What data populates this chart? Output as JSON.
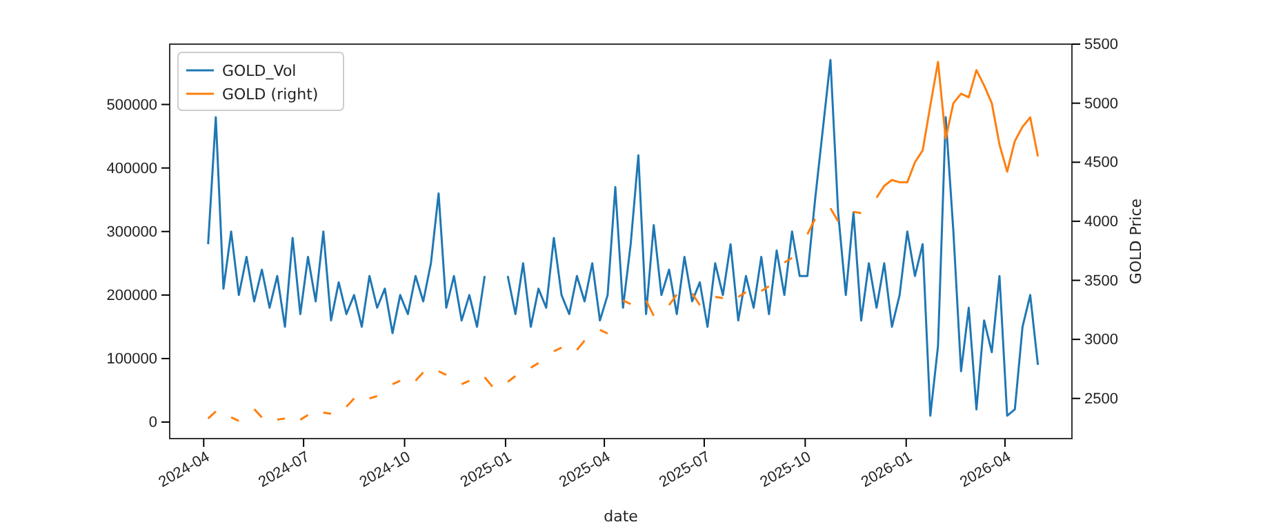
{
  "chart_data": {
    "type": "line",
    "xlabel": "date",
    "y2label": "GOLD Price",
    "x": [
      "2024-04-05",
      "2024-04-12",
      "2024-04-19",
      "2024-04-26",
      "2024-05-03",
      "2024-05-10",
      "2024-05-17",
      "2024-05-24",
      "2024-05-31",
      "2024-06-07",
      "2024-06-14",
      "2024-06-21",
      "2024-06-28",
      "2024-07-05",
      "2024-07-12",
      "2024-07-19",
      "2024-07-26",
      "2024-08-02",
      "2024-08-09",
      "2024-08-16",
      "2024-08-23",
      "2024-08-30",
      "2024-09-06",
      "2024-09-13",
      "2024-09-20",
      "2024-09-27",
      "2024-10-04",
      "2024-10-11",
      "2024-10-18",
      "2024-10-25",
      "2024-11-01",
      "2024-11-08",
      "2024-11-15",
      "2024-11-22",
      "2024-11-29",
      "2024-12-06",
      "2024-12-13",
      "2024-12-20",
      "2024-12-27",
      "2025-01-03",
      "2025-01-10",
      "2025-01-17",
      "2025-01-24",
      "2025-01-31",
      "2025-02-07",
      "2025-02-14",
      "2025-02-21",
      "2025-02-28",
      "2025-03-07",
      "2025-03-14",
      "2025-03-21",
      "2025-03-28",
      "2025-04-04",
      "2025-04-11",
      "2025-04-18",
      "2025-04-25",
      "2025-05-02",
      "2025-05-09",
      "2025-05-16",
      "2025-05-23",
      "2025-05-30",
      "2025-06-06",
      "2025-06-13",
      "2025-06-20",
      "2025-06-27",
      "2025-07-04",
      "2025-07-11",
      "2025-07-18",
      "2025-07-25",
      "2025-08-01",
      "2025-08-08",
      "2025-08-15",
      "2025-08-22",
      "2025-08-29",
      "2025-09-05",
      "2025-09-12",
      "2025-09-19",
      "2025-09-26",
      "2025-10-03",
      "2025-10-10",
      "2025-10-17",
      "2025-10-24",
      "2025-10-31",
      "2025-11-07",
      "2025-11-14",
      "2025-11-21",
      "2025-11-28",
      "2025-12-05",
      "2025-12-12",
      "2025-12-19",
      "2025-12-26",
      "2026-01-02",
      "2026-01-09",
      "2026-01-16",
      "2026-01-23",
      "2026-01-30",
      "2026-02-06",
      "2026-02-13",
      "2026-02-20",
      "2026-02-27",
      "2026-03-06",
      "2026-03-13",
      "2026-03-20",
      "2026-03-27",
      "2026-04-03",
      "2026-04-10",
      "2026-04-17",
      "2026-04-24",
      "2026-05-01"
    ],
    "series": [
      {
        "name": "GOLD_Vol",
        "color": "#1f77b4",
        "values": [
          280000,
          480000,
          210000,
          300000,
          200000,
          260000,
          190000,
          240000,
          180000,
          230000,
          150000,
          290000,
          170000,
          260000,
          190000,
          300000,
          160000,
          220000,
          170000,
          200000,
          150000,
          230000,
          180000,
          210000,
          140000,
          200000,
          170000,
          230000,
          190000,
          250000,
          360000,
          180000,
          230000,
          160000,
          200000,
          150000,
          230000,
          null,
          null,
          230000,
          170000,
          250000,
          150000,
          210000,
          180000,
          290000,
          200000,
          170000,
          230000,
          190000,
          250000,
          160000,
          200000,
          370000,
          180000,
          280000,
          420000,
          170000,
          310000,
          200000,
          240000,
          170000,
          260000,
          190000,
          220000,
          150000,
          250000,
          200000,
          280000,
          160000,
          230000,
          180000,
          260000,
          170000,
          270000,
          200000,
          300000,
          230000,
          230000,
          350000,
          460000,
          570000,
          330000,
          200000,
          330000,
          160000,
          250000,
          180000,
          250000,
          150000,
          200000,
          300000,
          230000,
          280000,
          10000,
          120000,
          480000,
          300000,
          80000,
          180000,
          20000,
          160000,
          110000,
          230000,
          10000,
          20000,
          150000,
          200000,
          90000
        ]
      },
      {
        "name": "GOLD (right)",
        "color": "#ff7f0e",
        "axis": "y2",
        "values": [
          2330,
          2390,
          null,
          2340,
          2310,
          null,
          2410,
          2340,
          null,
          2320,
          2330,
          null,
          2320,
          2360,
          null,
          2380,
          2370,
          null,
          2430,
          2500,
          null,
          2500,
          2520,
          null,
          2620,
          2650,
          null,
          2650,
          2720,
          null,
          2730,
          2700,
          null,
          2620,
          2650,
          null,
          2680,
          2600,
          null,
          2640,
          2690,
          null,
          2760,
          2800,
          null,
          2900,
          2930,
          null,
          2910,
          2990,
          null,
          3080,
          3050,
          null,
          3330,
          3300,
          null,
          3330,
          3200,
          null,
          3290,
          3380,
          null,
          3390,
          3290,
          null,
          3360,
          3350,
          null,
          3360,
          3400,
          null,
          3410,
          3450,
          null,
          3650,
          3690,
          null,
          3890,
          4020,
          null,
          4110,
          4000,
          null,
          4080,
          4070,
          null,
          4200,
          4300,
          4350,
          4330,
          4330,
          4500,
          4600,
          4980,
          5350,
          4700,
          5000,
          5080,
          5050,
          5280,
          5150,
          5000,
          4650,
          4420,
          4680,
          4800,
          4880,
          4550
        ]
      }
    ],
    "xlim": [
      "2024-03-01",
      "2026-06-01"
    ],
    "xticks": [
      {
        "value": "2024-04-01",
        "label": "2024-04"
      },
      {
        "value": "2024-07-01",
        "label": "2024-07"
      },
      {
        "value": "2024-10-01",
        "label": "2024-10"
      },
      {
        "value": "2025-01-01",
        "label": "2025-01"
      },
      {
        "value": "2025-04-01",
        "label": "2025-04"
      },
      {
        "value": "2025-07-01",
        "label": "2025-07"
      },
      {
        "value": "2025-10-01",
        "label": "2025-10"
      },
      {
        "value": "2026-01-01",
        "label": "2026-01"
      },
      {
        "value": "2026-04-01",
        "label": "2026-04"
      }
    ],
    "ylim": [
      -26000,
      595000
    ],
    "yticks": [
      0,
      100000,
      200000,
      300000,
      400000,
      500000
    ],
    "y2lim": [
      2160,
      5500
    ],
    "y2ticks": [
      2500,
      3000,
      3500,
      4000,
      4500,
      5000,
      5500
    ],
    "legend": "top left",
    "grid": false
  }
}
